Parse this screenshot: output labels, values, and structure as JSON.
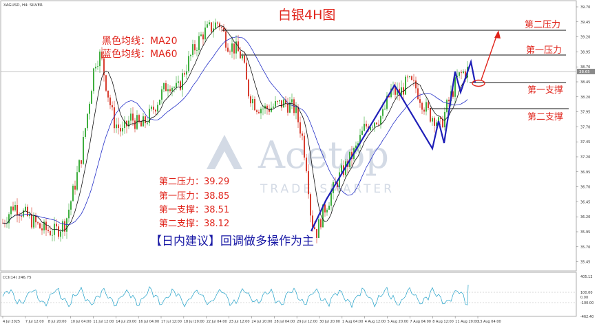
{
  "chart_data": {
    "type": "candlestick",
    "symbol_label": "XAGUSD, H4: SILVER",
    "title": "白银4H图",
    "legend": [
      {
        "label": "黑色均线：MA20",
        "color": "#000000"
      },
      {
        "label": "蓝色均线：MA60",
        "color": "#2430c8"
      }
    ],
    "price_ticks": [
      "39.70",
      "39.45",
      "39.20",
      "38.95",
      "38.70",
      "38.45",
      "38.20",
      "37.95",
      "37.70",
      "37.45",
      "37.20",
      "36.95",
      "36.70",
      "36.45",
      "36.20",
      "35.95",
      "35.70",
      "35.45"
    ],
    "current_price_label": "38.65",
    "time_ticks": [
      "4 Jul 2025",
      "7 Jul 12:00",
      "8 Jul 20:00",
      "10 Jul 04:00",
      "11 Jul 12:00",
      "14 Jul 20:00",
      "16 Jul 04:00",
      "17 Jul 12:00",
      "18 Jul 20:00",
      "22 Jul 04:00",
      "23 Jul 12:00",
      "24 Jul 20:00",
      "28 Jul 04:00",
      "29 Jul 12:00",
      "30 Jul 20:00",
      "1 Aug 04:00",
      "4 Aug 12:00",
      "5 Aug 20:00",
      "7 Aug 04:00",
      "8 Aug 12:00",
      "11 Aug 20:00",
      "13 Aug 04:00"
    ],
    "levels": [
      {
        "label": "第二压力",
        "value": 39.29
      },
      {
        "label": "第一压力",
        "value": 38.85
      },
      {
        "label": "第一支撑",
        "value": 38.51
      },
      {
        "label": "第二支撑",
        "value": 38.12
      }
    ],
    "level_list": [
      "第二压力：39.29",
      "第一压力：38.85",
      "第一支撑：38.51",
      "第二支撑：38.12"
    ],
    "advice": "【日内建议】回调做多操作为主",
    "watermark": {
      "brand": "Acetop",
      "sub": "TRADE SMARTER"
    },
    "indicator": {
      "label": "CCI(14) 246.75",
      "ticks": [
        "405.12",
        "100.00",
        "0.00",
        "-100.00",
        "-462.40"
      ]
    },
    "ylim": [
      35.3,
      39.8
    ],
    "colors": {
      "up": "#2aa52a",
      "down": "#d42a1a",
      "ma20": "#000000",
      "ma60": "#2430c8",
      "annotation": "#e0241b",
      "path": "#1f1fb8"
    }
  }
}
